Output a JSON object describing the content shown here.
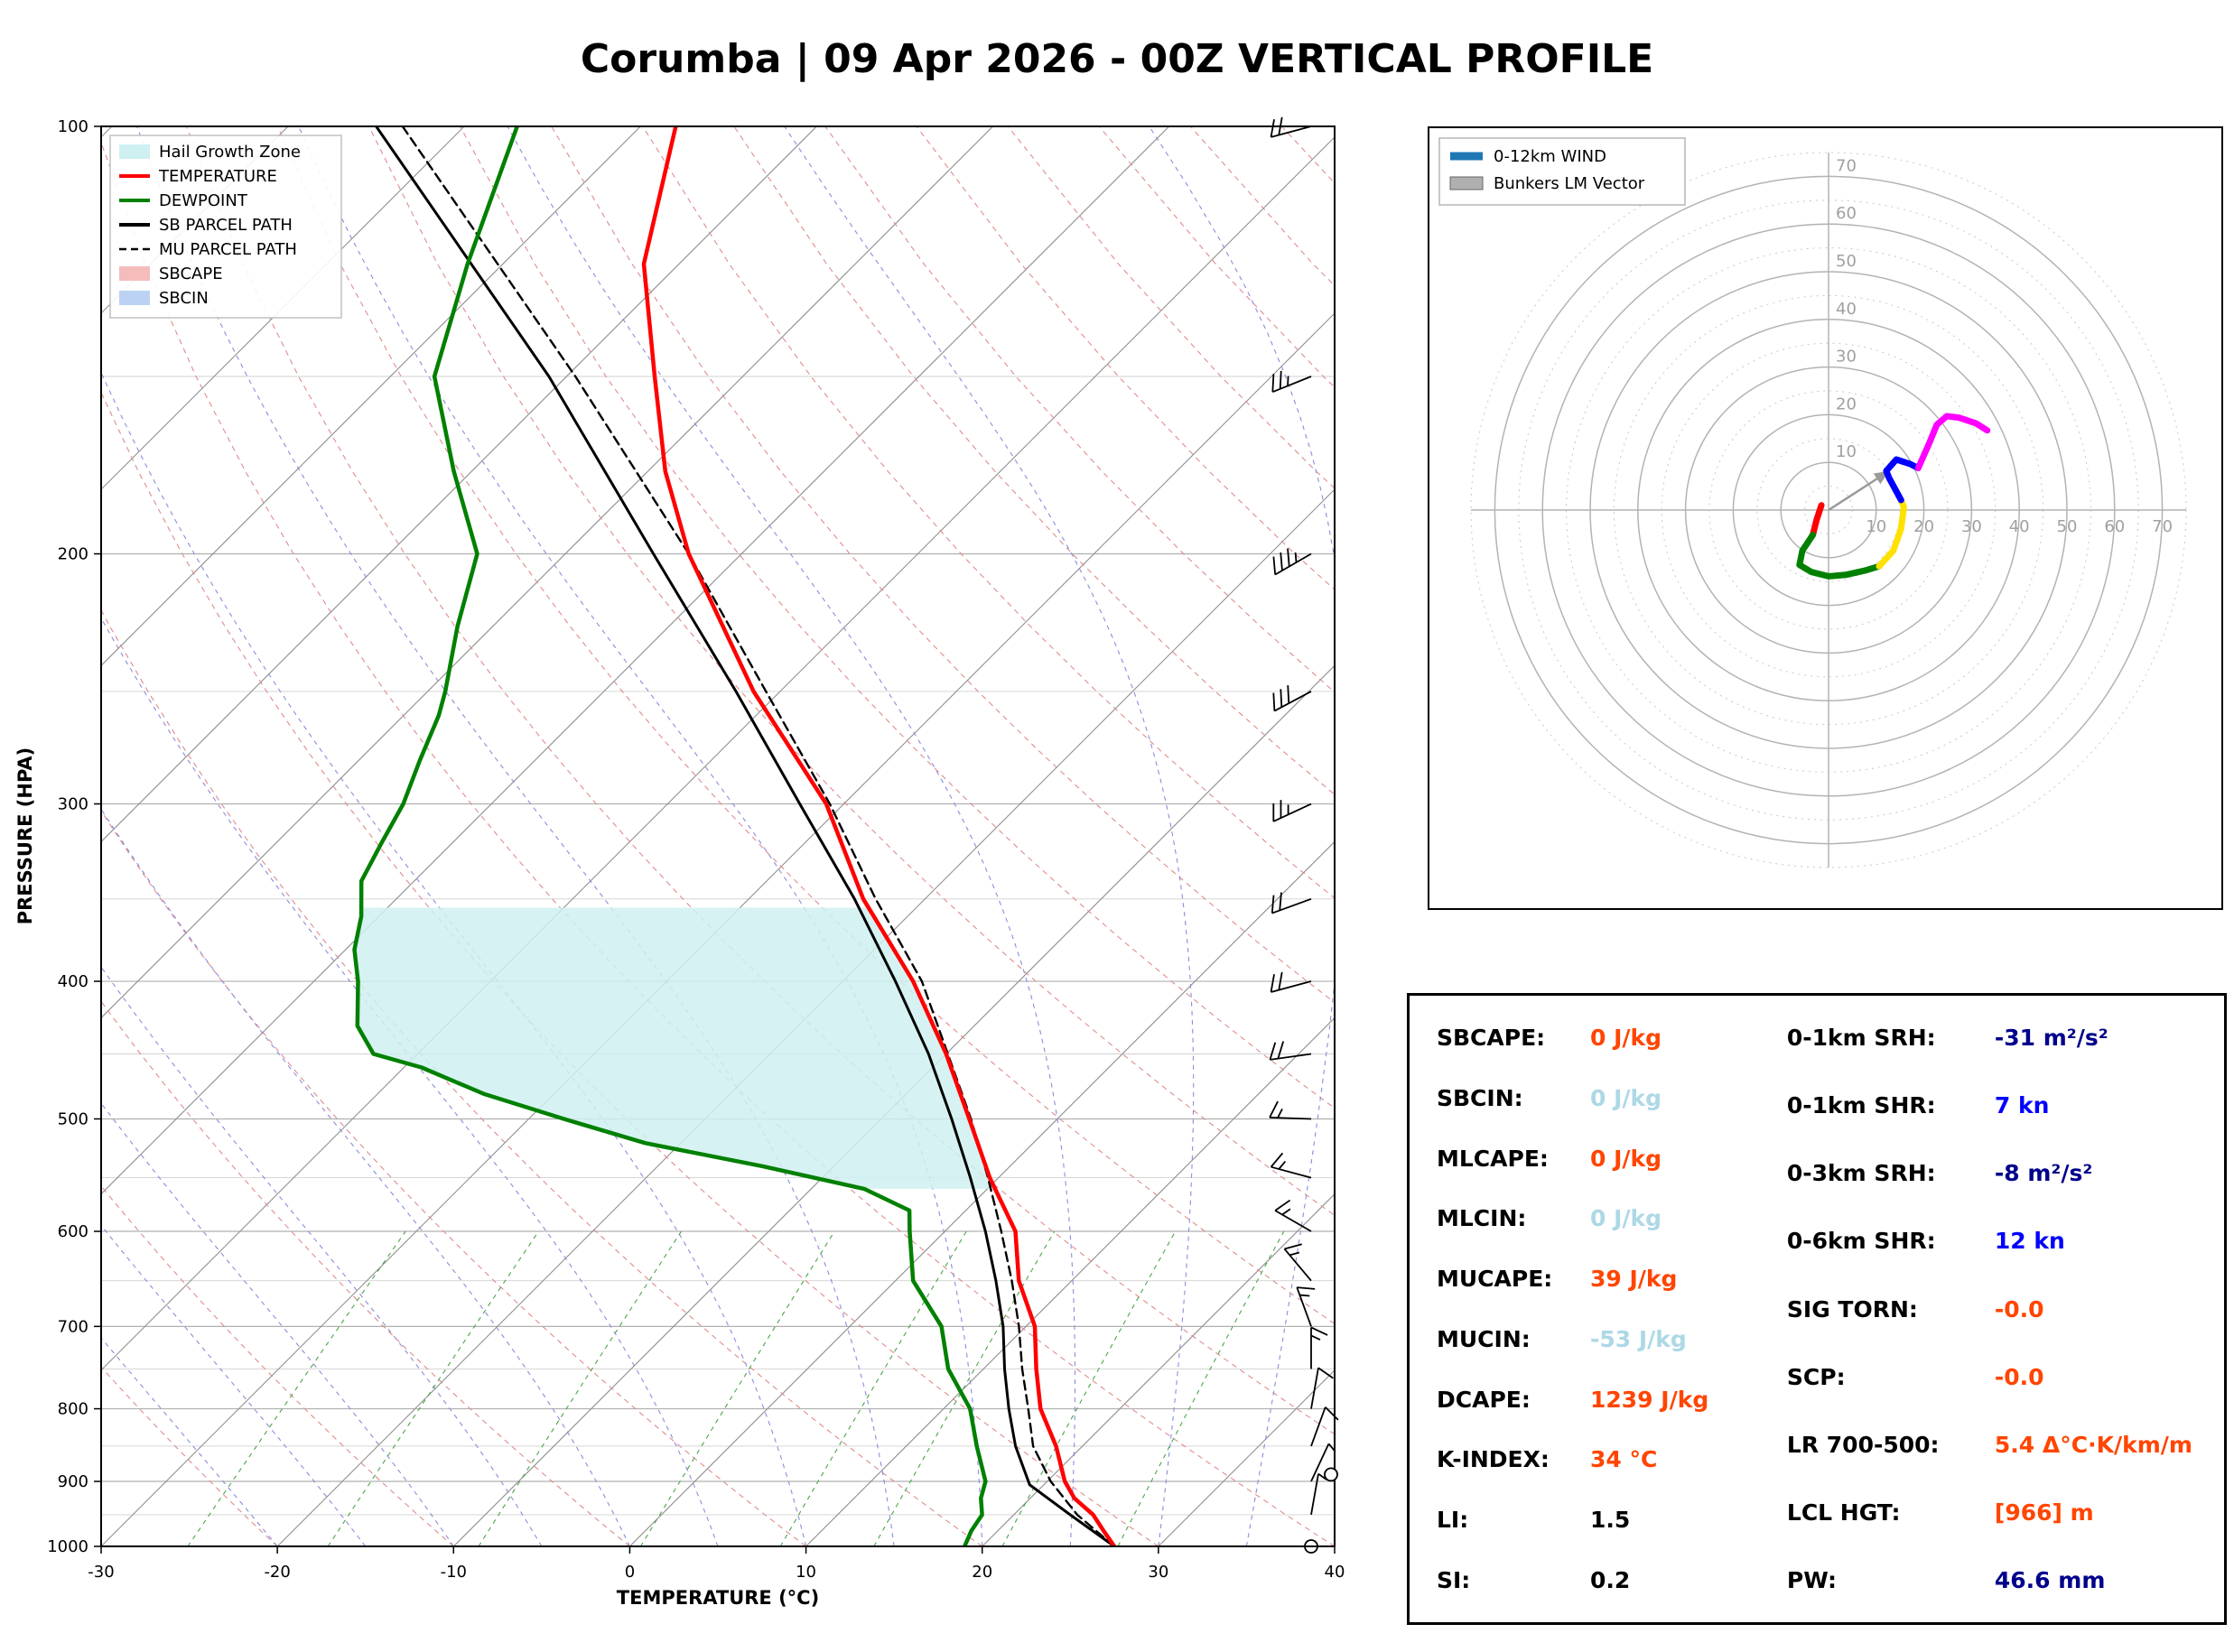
{
  "title": "Corumba | 09 Apr 2026 - 00Z VERTICAL PROFILE",
  "skewt": {
    "xlabel": "TEMPERATURE (°C)",
    "ylabel": "PRESSURE (HPA)",
    "x_ticks": [
      -30,
      -20,
      -10,
      0,
      10,
      20,
      30,
      40
    ],
    "y_ticks": [
      100,
      200,
      300,
      400,
      500,
      600,
      700,
      800,
      900,
      1000
    ],
    "legend": [
      {
        "label": "Hail Growth Zone",
        "swatch": "patch",
        "color": "#cff0f0"
      },
      {
        "label": "TEMPERATURE",
        "swatch": "line",
        "color": "#ff0000"
      },
      {
        "label": "DEWPOINT",
        "swatch": "line",
        "color": "#008000"
      },
      {
        "label": "SB PARCEL PATH",
        "swatch": "line",
        "color": "#000000"
      },
      {
        "label": "MU PARCEL PATH",
        "swatch": "dash",
        "color": "#000000"
      },
      {
        "label": "SBCAPE",
        "swatch": "patch",
        "color": "#f5bcbc"
      },
      {
        "label": "SBCIN",
        "swatch": "patch",
        "color": "#bcd2f5"
      }
    ]
  },
  "hodograph": {
    "legend": [
      {
        "label": "0-12km WIND",
        "swatch": "line",
        "color": "#1f77b4"
      },
      {
        "label": "Bunkers LM Vector",
        "swatch": "patch",
        "color": "#b0b0b0"
      }
    ],
    "ring_labels": [
      10,
      20,
      30,
      40,
      50,
      60,
      70
    ]
  },
  "stats": {
    "left": [
      {
        "label": "SBCAPE:",
        "value": "0 J/kg",
        "color": "#ff4500"
      },
      {
        "label": "SBCIN:",
        "value": "0 J/kg",
        "color": "#add8e6"
      },
      {
        "label": "MLCAPE:",
        "value": "0 J/kg",
        "color": "#ff4500"
      },
      {
        "label": "MLCIN:",
        "value": "0 J/kg",
        "color": "#add8e6"
      },
      {
        "label": "MUCAPE:",
        "value": "39 J/kg",
        "color": "#ff4500"
      },
      {
        "label": "MUCIN:",
        "value": "-53 J/kg",
        "color": "#add8e6"
      },
      {
        "label": "DCAPE:",
        "value": "1239 J/kg",
        "color": "#ff4500"
      },
      {
        "label": "K-INDEX:",
        "value": "34 °C",
        "color": "#ff4500"
      },
      {
        "label": "LI:",
        "value": "1.5",
        "color": "#000000"
      },
      {
        "label": "SI:",
        "value": "0.2",
        "color": "#000000"
      }
    ],
    "right": [
      {
        "label": "0-1km SRH:",
        "value": "-31 m²/s²",
        "color": "#00008b"
      },
      {
        "label": "0-1km SHR:",
        "value": "7 kn",
        "color": "#0000ff"
      },
      {
        "label": "0-3km SRH:",
        "value": "-8 m²/s²",
        "color": "#00008b"
      },
      {
        "label": "0-6km SHR:",
        "value": "12 kn",
        "color": "#0000ff"
      },
      {
        "label": "SIG TORN:",
        "value": "-0.0",
        "color": "#ff4500"
      },
      {
        "label": "SCP:",
        "value": "-0.0",
        "color": "#ff4500"
      },
      {
        "label": "LR 700-500:",
        "value": "5.4 Δ°C·K/km/m",
        "color": "#ff4500"
      },
      {
        "label": "LCL HGT:",
        "value": "[966] m",
        "color": "#ff4500"
      },
      {
        "label": "PW:",
        "value": "46.6 mm",
        "color": "#00008b"
      }
    ]
  },
  "chart_data": [
    {
      "type": "line",
      "name": "skew_t_vertical_profile",
      "x_unit": "°C",
      "y_unit": "hPa",
      "x_range": [
        -30,
        40
      ],
      "y_range": [
        1000,
        100
      ],
      "temperature": [
        [
          1000,
          27.5
        ],
        [
          975,
          26
        ],
        [
          950,
          24.5
        ],
        [
          925,
          22.5
        ],
        [
          900,
          21
        ],
        [
          850,
          18.5
        ],
        [
          800,
          15.5
        ],
        [
          750,
          13
        ],
        [
          700,
          10.5
        ],
        [
          650,
          7
        ],
        [
          600,
          4
        ],
        [
          550,
          -0.5
        ],
        [
          500,
          -5
        ],
        [
          450,
          -10
        ],
        [
          400,
          -16
        ],
        [
          350,
          -23.5
        ],
        [
          300,
          -31
        ],
        [
          250,
          -41.5
        ],
        [
          200,
          -53
        ],
        [
          175,
          -59
        ],
        [
          150,
          -65
        ],
        [
          125,
          -72
        ],
        [
          100,
          -78
        ]
      ],
      "dewpoint": [
        [
          1000,
          19
        ],
        [
          975,
          18.5
        ],
        [
          950,
          18.2
        ],
        [
          925,
          17.2
        ],
        [
          900,
          16.5
        ],
        [
          850,
          14
        ],
        [
          800,
          11.5
        ],
        [
          750,
          8
        ],
        [
          700,
          5.2
        ],
        [
          650,
          1
        ],
        [
          600,
          -2
        ],
        [
          580,
          -3.2
        ],
        [
          560,
          -7
        ],
        [
          540,
          -14
        ],
        [
          520,
          -22
        ],
        [
          500,
          -28
        ],
        [
          480,
          -34
        ],
        [
          460,
          -39
        ],
        [
          450,
          -42.5
        ],
        [
          430,
          -45
        ],
        [
          400,
          -47.5
        ],
        [
          380,
          -49.5
        ],
        [
          360,
          -51
        ],
        [
          340,
          -53
        ],
        [
          320,
          -54
        ],
        [
          300,
          -55
        ],
        [
          280,
          -56.5
        ],
        [
          260,
          -58
        ],
        [
          250,
          -59
        ],
        [
          225,
          -62
        ],
        [
          200,
          -65
        ],
        [
          175,
          -71
        ],
        [
          150,
          -77.5
        ],
        [
          125,
          -82
        ],
        [
          100,
          -87
        ]
      ],
      "sb_parcel": [
        [
          1000,
          27.5
        ],
        [
          950,
          23.2
        ],
        [
          905,
          19.2
        ],
        [
          850,
          16.2
        ],
        [
          800,
          13.7
        ],
        [
          750,
          11.2
        ],
        [
          700,
          8.7
        ],
        [
          650,
          5.7
        ],
        [
          600,
          2.3
        ],
        [
          550,
          -1.6
        ],
        [
          500,
          -6
        ],
        [
          450,
          -11
        ],
        [
          400,
          -17
        ],
        [
          350,
          -24
        ],
        [
          300,
          -32.5
        ],
        [
          250,
          -42.5
        ],
        [
          200,
          -55
        ],
        [
          150,
          -71
        ],
        [
          100,
          -95
        ]
      ],
      "mu_parcel": [
        [
          1000,
          27.5
        ],
        [
          950,
          23.6
        ],
        [
          900,
          20.2
        ],
        [
          850,
          17.2
        ],
        [
          800,
          14.8
        ],
        [
          750,
          12.2
        ],
        [
          700,
          9.6
        ],
        [
          650,
          6.6
        ],
        [
          600,
          3.2
        ],
        [
          550,
          -0.6
        ],
        [
          500,
          -4.9
        ],
        [
          450,
          -9.9
        ],
        [
          400,
          -15.5
        ],
        [
          350,
          -22.8
        ],
        [
          300,
          -30.8
        ],
        [
          250,
          -40.8
        ],
        [
          200,
          -53
        ],
        [
          150,
          -69.5
        ],
        [
          100,
          -93.5
        ]
      ],
      "hail_growth_zone_hpa": [
        560,
        355
      ],
      "calm_marker_hpa": 890,
      "wind_barbs_p_kn_dir": [
        [
          1000,
          2,
          170
        ],
        [
          950,
          4,
          10
        ],
        [
          900,
          7,
          25
        ],
        [
          850,
          9,
          20
        ],
        [
          800,
          12,
          10
        ],
        [
          750,
          13,
          0
        ],
        [
          700,
          14,
          340
        ],
        [
          650,
          15,
          320
        ],
        [
          600,
          16,
          300
        ],
        [
          550,
          16,
          285
        ],
        [
          500,
          16,
          272
        ],
        [
          450,
          18,
          262
        ],
        [
          400,
          19,
          255
        ],
        [
          350,
          21,
          250
        ],
        [
          300,
          25,
          245
        ],
        [
          250,
          32,
          242
        ],
        [
          200,
          36,
          240
        ],
        [
          150,
          25,
          248
        ],
        [
          100,
          18,
          255
        ]
      ]
    },
    {
      "type": "line",
      "name": "hodograph_0_12km",
      "unit": "kn",
      "rings": [
        10,
        20,
        30,
        40,
        50,
        60,
        70
      ],
      "segments": [
        {
          "layer": "0-1km",
          "color": "#ff0000",
          "points": [
            [
              -1.5,
              1
            ],
            [
              -2.5,
              -2
            ],
            [
              -3.3,
              -5.2
            ]
          ]
        },
        {
          "layer": "1-3km",
          "color": "#008000",
          "points": [
            [
              -3.3,
              -5.2
            ],
            [
              -5.5,
              -8.5
            ],
            [
              -6.1,
              -11.5
            ],
            [
              -3.6,
              -13
            ],
            [
              0,
              -13.9
            ],
            [
              3.6,
              -13.6
            ],
            [
              7.6,
              -12.7
            ],
            [
              10.6,
              -11.8
            ]
          ]
        },
        {
          "layer": "3-6km",
          "color": "#ffe100",
          "points": [
            [
              10.6,
              -11.8
            ],
            [
              13.6,
              -8.5
            ],
            [
              15.2,
              -3.9
            ],
            [
              15.8,
              0.6
            ],
            [
              15.2,
              2.1
            ]
          ]
        },
        {
          "layer": "6-9km",
          "color": "#0000ff",
          "points": [
            [
              15.2,
              2.1
            ],
            [
              12.7,
              6.7
            ],
            [
              12.1,
              8.2
            ],
            [
              14.2,
              10.6
            ],
            [
              17,
              9.7
            ],
            [
              18.8,
              8.8
            ]
          ]
        },
        {
          "layer": "9-12km",
          "color": "#ff00ff",
          "points": [
            [
              18.8,
              8.8
            ],
            [
              21.2,
              14.2
            ],
            [
              22.7,
              17.9
            ],
            [
              24.8,
              19.7
            ],
            [
              27.3,
              19.4
            ],
            [
              30.9,
              18.2
            ],
            [
              33.3,
              16.7
            ]
          ]
        }
      ],
      "bunkers_lm_vector": [
        12.7,
        8.2
      ]
    }
  ]
}
